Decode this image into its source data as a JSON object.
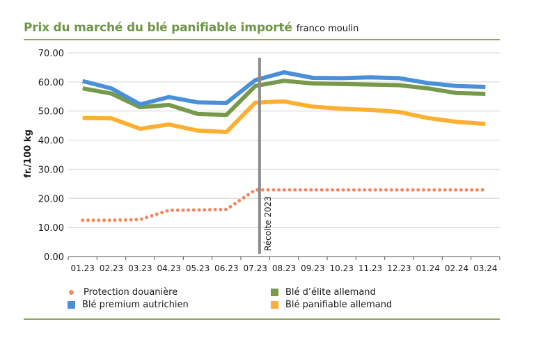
{
  "title": "Prix du marché du blé panifiable importé",
  "subtitle": "franco moulin",
  "colors": {
    "accent": "#6f9546",
    "protection": "#ef8a63",
    "premium": "#4a90d9",
    "elite": "#77994a",
    "panifiable": "#fbb033",
    "harvest_line": "#8c8c8c"
  },
  "chart_data": {
    "type": "line",
    "ylabel": "fr./100 kg",
    "ylim": [
      0,
      70
    ],
    "yticks": [
      "0.00",
      "10.00",
      "20.00",
      "30.00",
      "40.00",
      "50.00",
      "60.00",
      "70.00"
    ],
    "ytick_values": [
      0,
      10,
      20,
      30,
      40,
      50,
      60,
      70
    ],
    "categories": [
      "01.23",
      "02.23",
      "03.23",
      "04.23",
      "05.23",
      "06.23",
      "07.23",
      "08.23",
      "09.23",
      "10.23",
      "11.23",
      "12.23",
      "01.24",
      "02.24",
      "03.24"
    ],
    "annotation": {
      "label": "Récolte 2023",
      "category_index": 6,
      "offset": 0.15
    },
    "series": [
      {
        "name": "Protection douanière",
        "style": "dotted",
        "color_key": "protection",
        "values": [
          12.5,
          12.5,
          12.7,
          15.9,
          16.0,
          16.2,
          22.9,
          22.9,
          22.9,
          22.9,
          22.9,
          22.9,
          22.9,
          22.9,
          22.9
        ]
      },
      {
        "name": "Blé d’élite allemand",
        "style": "solid",
        "color_key": "elite",
        "values": [
          57.8,
          56.0,
          51.3,
          52.1,
          49.0,
          48.7,
          58.6,
          60.4,
          59.5,
          59.3,
          59.1,
          58.9,
          57.8,
          56.2,
          55.9
        ]
      },
      {
        "name": "Blé premium autrichien",
        "style": "solid",
        "color_key": "premium",
        "values": [
          60.3,
          57.8,
          52.3,
          54.8,
          53.0,
          52.8,
          60.6,
          63.3,
          61.4,
          61.3,
          61.6,
          61.3,
          59.6,
          58.6,
          58.3
        ]
      },
      {
        "name": "Blé panifiable allemand",
        "style": "solid",
        "color_key": "panifiable",
        "values": [
          47.6,
          47.5,
          43.9,
          45.4,
          43.3,
          42.8,
          52.9,
          53.3,
          51.5,
          50.8,
          50.4,
          49.7,
          47.6,
          46.3,
          45.6
        ]
      }
    ],
    "legend": [
      "Protection douanière",
      "Blé d’élite allemand",
      "Blé premium autrichien",
      "Blé panifiable allemand"
    ]
  }
}
